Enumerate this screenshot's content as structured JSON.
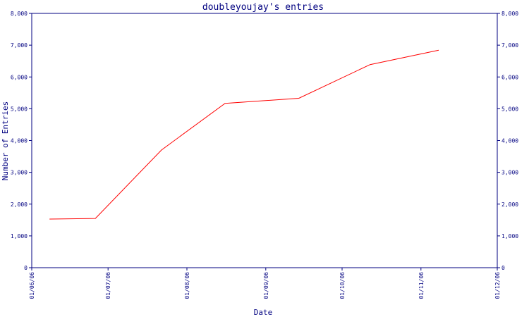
{
  "chart_data": {
    "type": "line",
    "title": "doubleyoujay's entries",
    "xlabel": "Date",
    "ylabel": "Number of Entries",
    "x_ticks": [
      "01/06/06",
      "01/07/06",
      "01/08/06",
      "01/09/06",
      "01/10/06",
      "01/11/06",
      "01/12/06"
    ],
    "y_ticks": [
      "0",
      "1,000",
      "2,000",
      "3,000",
      "4,000",
      "5,000",
      "6,000",
      "7,000",
      "8,000"
    ],
    "ylim": [
      0,
      8000
    ],
    "xlim": [
      "2006-06-01",
      "2006-12-01"
    ],
    "grid": false,
    "series": [
      {
        "color": "#ff0000",
        "points": [
          {
            "x": "2006-06-08",
            "y": 1530
          },
          {
            "x": "2006-06-26",
            "y": 1550
          },
          {
            "x": "2006-07-22",
            "y": 3700
          },
          {
            "x": "2006-08-16",
            "y": 5170
          },
          {
            "x": "2006-09-14",
            "y": 5330
          },
          {
            "x": "2006-10-12",
            "y": 6390
          },
          {
            "x": "2006-11-08",
            "y": 6840
          }
        ]
      }
    ],
    "axis_color": "#000080"
  }
}
